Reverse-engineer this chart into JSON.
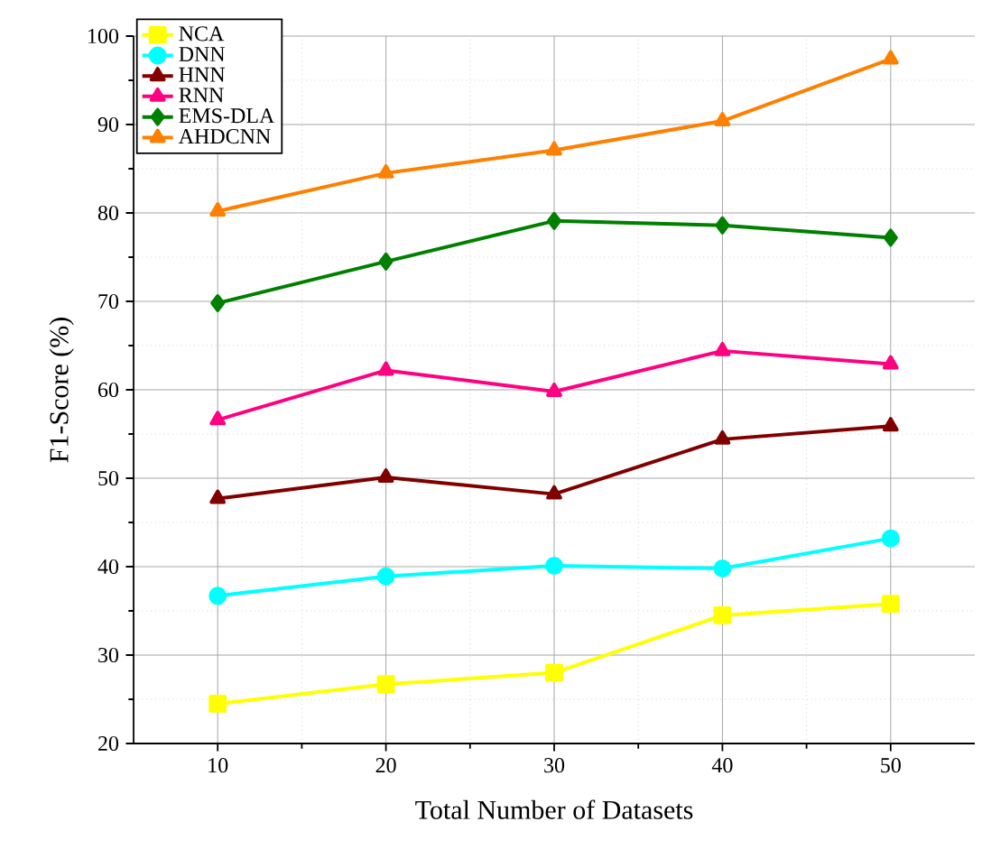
{
  "chart_data": {
    "type": "line",
    "xlabel": "Total Number of Datasets",
    "ylabel": "F1-Score (%)",
    "x": [
      10,
      20,
      30,
      40,
      50
    ],
    "xlim": [
      5,
      55
    ],
    "xticks": [
      10,
      20,
      30,
      40,
      50
    ],
    "ylim": [
      20,
      100
    ],
    "yticks": [
      20,
      30,
      40,
      50,
      60,
      70,
      80,
      90,
      100
    ],
    "grid": true,
    "legend": "top left",
    "line_style": "solid",
    "series": [
      {
        "name": "NCA",
        "color": "#ffff00",
        "marker": "square",
        "values": [
          24.5,
          26.7,
          28.0,
          34.5,
          35.8
        ]
      },
      {
        "name": "DNN",
        "color": "#00ffff",
        "marker": "circle",
        "values": [
          36.7,
          38.9,
          40.1,
          39.8,
          43.2
        ]
      },
      {
        "name": "HNN",
        "color": "#800000",
        "marker": "triangle",
        "values": [
          47.7,
          50.1,
          48.2,
          54.4,
          55.9
        ]
      },
      {
        "name": "RNN",
        "color": "#ff0080",
        "marker": "triangle",
        "values": [
          56.6,
          62.2,
          59.8,
          64.4,
          62.9
        ]
      },
      {
        "name": "EMS-DLA",
        "color": "#008000",
        "marker": "diamond",
        "values": [
          69.8,
          74.5,
          79.1,
          78.6,
          77.2
        ]
      },
      {
        "name": "AHDCNN",
        "color": "#ff8000",
        "marker": "triangle",
        "values": [
          80.2,
          84.5,
          87.1,
          90.4,
          97.4
        ]
      }
    ]
  }
}
